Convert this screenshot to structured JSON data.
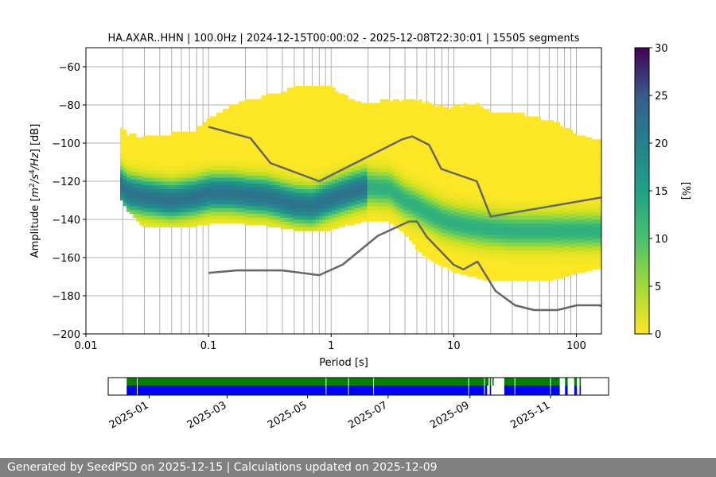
{
  "chart_data": {
    "type": "heatmap",
    "title": "HA.AXAR..HHN | 100.0Hz | 2024-12-15T00:00:02 - 2025-12-08T22:30:01 | 15505 segments",
    "xlabel": "Period [s]",
    "ylabel_main": "Amplitude [",
    "ylabel_tail": "] [dB]",
    "x_scale": "log",
    "xlim": [
      0.01,
      160
    ],
    "ylim": [
      -200,
      -50
    ],
    "x_ticks": [
      {
        "v": 0.01,
        "label": "0.01"
      },
      {
        "v": 0.1,
        "label": "0.1"
      },
      {
        "v": 1,
        "label": "1"
      },
      {
        "v": 10,
        "label": "10"
      },
      {
        "v": 100,
        "label": "100"
      }
    ],
    "y_ticks": [
      {
        "v": -60,
        "label": "−60"
      },
      {
        "v": -80,
        "label": "−80"
      },
      {
        "v": -100,
        "label": "−100"
      },
      {
        "v": -120,
        "label": "−120"
      },
      {
        "v": -140,
        "label": "−140"
      },
      {
        "v": -160,
        "label": "−160"
      },
      {
        "v": -180,
        "label": "−180"
      },
      {
        "v": -200,
        "label": "−200"
      }
    ],
    "grid": true,
    "colormap": "viridis",
    "colorbar": {
      "label": "[%]",
      "range": [
        0,
        30
      ],
      "ticks": [
        {
          "v": 0,
          "label": "0"
        },
        {
          "v": 5,
          "label": "5"
        },
        {
          "v": 10,
          "label": "10"
        },
        {
          "v": 15,
          "label": "15"
        },
        {
          "v": 20,
          "label": "20"
        },
        {
          "v": 25,
          "label": "25"
        },
        {
          "v": 30,
          "label": "30"
        }
      ]
    },
    "psd_envelope": {
      "periods": [
        0.019,
        0.022,
        0.03,
        0.05,
        0.08,
        0.1,
        0.15,
        0.2,
        0.3,
        0.5,
        0.7,
        1.0,
        1.5,
        2.0,
        3.0,
        4.0,
        5.0,
        6.0,
        8.0,
        10,
        15,
        20,
        30,
        50,
        80,
        100,
        160
      ],
      "mode_db": [
        -122,
        -126,
        -128,
        -130,
        -128,
        -126,
        -126,
        -127,
        -128,
        -132,
        -133,
        -129,
        -125,
        -123,
        -124,
        -130,
        -133,
        -136,
        -140,
        -142,
        -144,
        -145,
        -146,
        -146,
        -146,
        -146,
        -146
      ],
      "low_db": [
        -128,
        -135,
        -144,
        -144,
        -143,
        -142,
        -141,
        -142,
        -143,
        -145,
        -146,
        -145,
        -142,
        -140,
        -141,
        -147,
        -155,
        -160,
        -164,
        -167,
        -170,
        -172,
        -172,
        -172,
        -170,
        -168,
        -165
      ],
      "high_db": [
        -92,
        -96,
        -98,
        -96,
        -94,
        -88,
        -82,
        -79,
        -76,
        -72,
        -70,
        -72,
        -78,
        -80,
        -78,
        -78,
        -78,
        -80,
        -82,
        -82,
        -80,
        -84,
        -84,
        -88,
        -92,
        -96,
        -100
      ]
    },
    "noise_models": {
      "nhnm": {
        "x": [
          0.1,
          0.22,
          0.32,
          0.8,
          3.8,
          4.6,
          6.3,
          7.9,
          15.4,
          20.0,
          160
        ],
        "y": [
          -91.5,
          -97.4,
          -110.5,
          -120.0,
          -98.0,
          -96.5,
          -101.0,
          -113.5,
          -120.0,
          -138.5,
          -128.5
        ]
      },
      "nlnm": {
        "x": [
          0.1,
          0.17,
          0.4,
          0.8,
          1.24,
          2.4,
          4.3,
          5.0,
          6.0,
          10.0,
          12.0,
          15.6,
          21.9,
          31.6,
          45.0,
          70.0,
          101.0,
          154.0,
          160.0
        ],
        "y": [
          -168.0,
          -166.7,
          -166.7,
          -169.2,
          -163.7,
          -148.6,
          -141.1,
          -141.1,
          -149.0,
          -163.8,
          -166.2,
          -162.1,
          -177.5,
          -185.0,
          -187.5,
          -187.5,
          -185.0,
          -185.0,
          -185.4
        ]
      }
    },
    "availability": {
      "date_range": [
        "2024-12-01",
        "2025-12-15"
      ],
      "x_ticks": [
        "2025-01",
        "2025-03",
        "2025-05",
        "2025-07",
        "2025-09",
        "2025-11"
      ],
      "green_segments": [
        [
          "2024-12-15",
          "2025-09-15"
        ],
        [
          "2025-09-16",
          "2025-09-17"
        ],
        [
          "2025-09-18",
          "2025-09-19"
        ],
        [
          "2025-09-27",
          "2025-11-08"
        ],
        [
          "2025-11-12",
          "2025-11-14"
        ],
        [
          "2025-11-19",
          "2025-11-21"
        ],
        [
          "2025-11-23",
          "2025-11-24"
        ]
      ],
      "blue_segments": [
        [
          "2024-12-15",
          "2025-09-14"
        ],
        [
          "2025-09-16",
          "2025-09-17"
        ],
        [
          "2025-09-27",
          "2025-11-08"
        ],
        [
          "2025-11-12",
          "2025-11-14"
        ],
        [
          "2025-11-19",
          "2025-11-21"
        ],
        [
          "2025-11-23",
          "2025-11-24"
        ]
      ],
      "gaps": [
        "2024-12-23",
        "2025-05-15",
        "2025-06-01",
        "2025-06-20",
        "2025-08-31",
        "2025-09-12",
        "2025-10-05",
        "2025-11-01"
      ],
      "green_color": "#008000",
      "blue_color": "#0000ff"
    }
  },
  "footer": {
    "text": "Generated by SeedPSD on 2025-12-15 | Calculations updated on 2025-12-09"
  }
}
